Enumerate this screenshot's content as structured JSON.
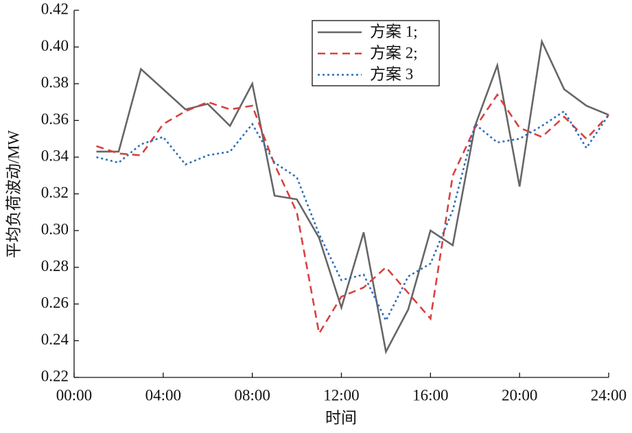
{
  "chart_data": {
    "type": "line",
    "xlabel": "时间",
    "ylabel": "平均负荷波动/MW",
    "x": [
      1,
      2,
      3,
      4,
      5,
      6,
      7,
      8,
      9,
      10,
      11,
      12,
      13,
      14,
      15,
      16,
      17,
      18,
      19,
      20,
      21,
      22,
      23,
      24
    ],
    "series": [
      {
        "name": "方案 1;",
        "color": "#666666",
        "dash": "solid",
        "values": [
          0.343,
          0.343,
          0.388,
          0.377,
          0.366,
          0.369,
          0.357,
          0.38,
          0.319,
          0.317,
          0.296,
          0.258,
          0.299,
          0.234,
          0.257,
          0.3,
          0.292,
          0.357,
          0.39,
          0.324,
          0.403,
          0.377,
          0.368,
          0.363
        ]
      },
      {
        "name": "方案 2;",
        "color": "#d9413f",
        "dash": "dashed",
        "values": [
          0.346,
          0.342,
          0.341,
          0.358,
          0.365,
          0.37,
          0.366,
          0.368,
          0.336,
          0.31,
          0.244,
          0.264,
          0.269,
          0.28,
          0.266,
          0.252,
          0.33,
          0.356,
          0.374,
          0.356,
          0.351,
          0.362,
          0.35,
          0.363
        ]
      },
      {
        "name": "方案 3",
        "color": "#2e6fb5",
        "dash": "dotted",
        "values": [
          0.34,
          0.337,
          0.347,
          0.351,
          0.336,
          0.341,
          0.343,
          0.358,
          0.337,
          0.329,
          0.298,
          0.273,
          0.276,
          0.251,
          0.275,
          0.282,
          0.311,
          0.358,
          0.348,
          0.35,
          0.357,
          0.365,
          0.345,
          0.363
        ]
      }
    ],
    "xlim": [
      0,
      24
    ],
    "xticks": [
      {
        "value": 0,
        "label": "00:00"
      },
      {
        "value": 4,
        "label": "04:00"
      },
      {
        "value": 8,
        "label": "08:00"
      },
      {
        "value": 12,
        "label": "12:00"
      },
      {
        "value": 16,
        "label": "16:00"
      },
      {
        "value": 20,
        "label": "20:00"
      },
      {
        "value": 24,
        "label": "24:00"
      }
    ],
    "ylim": [
      0.22,
      0.42
    ],
    "yticks": [
      0.22,
      0.24,
      0.26,
      0.28,
      {
        "value": 0.3,
        "label": "0.30"
      },
      0.32,
      0.34,
      0.36,
      0.38,
      {
        "value": 0.4,
        "label": "0.40"
      },
      0.42
    ],
    "legend": "top-center",
    "grid": false
  }
}
